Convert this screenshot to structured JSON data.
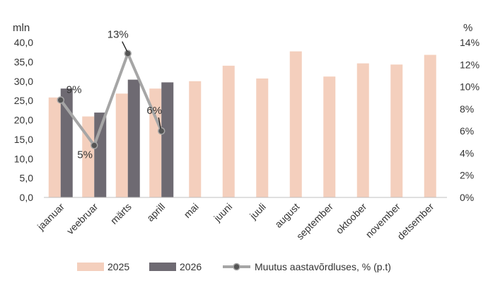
{
  "chart_data": {
    "type": "bar",
    "left_unit": "mln",
    "right_unit": "%",
    "categories": [
      "jaanuar",
      "veebruar",
      "märts",
      "aprill",
      "mai",
      "juuni",
      "juuli",
      "august",
      "september",
      "oktoober",
      "november",
      "detsember"
    ],
    "series": [
      {
        "name": "2025",
        "type": "bar",
        "axis": "left",
        "color": "#f4cfbd",
        "values": [
          25.8,
          20.9,
          26.8,
          28.1,
          30.0,
          34.0,
          30.7,
          37.7,
          31.2,
          34.6,
          34.3,
          36.8
        ]
      },
      {
        "name": "2026",
        "type": "bar",
        "axis": "left",
        "color": "#6e6a72",
        "values": [
          28.1,
          21.9,
          30.4,
          29.7,
          null,
          null,
          null,
          null,
          null,
          null,
          null,
          null
        ]
      },
      {
        "name": "Muutus aastavõrdluses, % (p.t)",
        "type": "line",
        "axis": "right",
        "color": "#a6a6a6",
        "marker_color": "#555555",
        "values": [
          8.8,
          4.7,
          13.0,
          6.0,
          null,
          null,
          null,
          null,
          null,
          null,
          null,
          null
        ]
      }
    ],
    "line_labels": [
      "9%",
      "5%",
      "13%",
      "6%"
    ],
    "left_axis": {
      "min": 0,
      "max": 40,
      "step": 5,
      "ticks": [
        "0,0",
        "5,0",
        "10,0",
        "15,0",
        "20,0",
        "25,0",
        "30,0",
        "35,0",
        "40,0"
      ]
    },
    "right_axis": {
      "min": 0,
      "max": 14,
      "step": 2,
      "ticks": [
        "0%",
        "2%",
        "4%",
        "6%",
        "8%",
        "10%",
        "12%",
        "14%"
      ]
    },
    "legend": {
      "position": "bottom"
    },
    "grid": false
  }
}
